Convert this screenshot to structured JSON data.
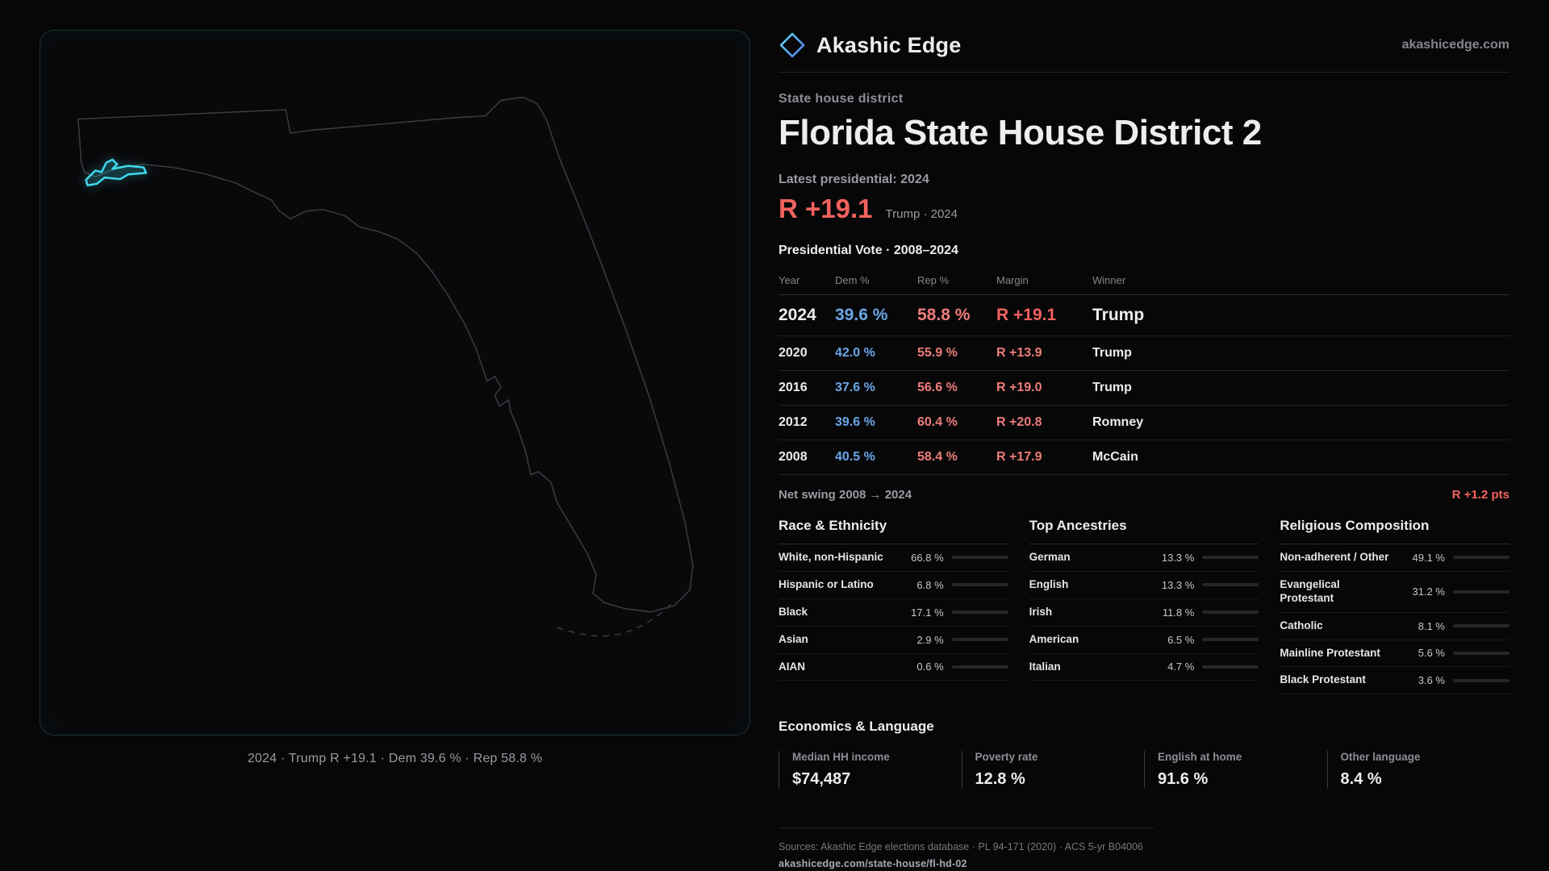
{
  "theme": {
    "dem_blue": "#6aa6e8",
    "rep_red": "#f2625e",
    "highlight_cyan": "#3fd8ec"
  },
  "brand": {
    "logo_icon": "diamond",
    "name": "Akashic Edge",
    "domain": "akashicedge.com"
  },
  "map": {
    "caption": "2024 · Trump R +19.1 · Dem 39.6 % · Rep 58.8 %"
  },
  "header": {
    "kicker": "State house district",
    "title": "Florida State House District 2",
    "latest_label": "Latest presidential: 2024",
    "margin_value": "R +19.1",
    "margin_detail": "Trump · 2024"
  },
  "vote_table": {
    "title": "Presidential Vote · 2008–2024",
    "columns": {
      "year": "Year",
      "dem": "Dem %",
      "rep": "Rep %",
      "margin": "Margin",
      "winner": "Winner"
    },
    "rows": [
      {
        "year": "2024",
        "dem": "39.6 %",
        "rep": "58.8 %",
        "margin": "R +19.1",
        "winner": "Trump"
      },
      {
        "year": "2020",
        "dem": "42.0 %",
        "rep": "55.9 %",
        "margin": "R +13.9",
        "winner": "Trump"
      },
      {
        "year": "2016",
        "dem": "37.6 %",
        "rep": "56.6 %",
        "margin": "R +19.0",
        "winner": "Trump"
      },
      {
        "year": "2012",
        "dem": "39.6 %",
        "rep": "60.4 %",
        "margin": "R +20.8",
        "winner": "Romney"
      },
      {
        "year": "2008",
        "dem": "40.5 %",
        "rep": "58.4 %",
        "margin": "R +17.9",
        "winner": "McCain"
      }
    ],
    "net_swing_label": "Net swing 2008 → 2024",
    "net_swing_value": "R +1.2 pts"
  },
  "race": {
    "title": "Race & Ethnicity",
    "items": [
      {
        "label": "White, non-Hispanic",
        "display": "66.8 %",
        "value": 66.8,
        "color": "#a5a9bd"
      },
      {
        "label": "Hispanic or Latino",
        "display": "6.8 %",
        "value": 6.8,
        "color": "#e8b33c"
      },
      {
        "label": "Black",
        "display": "17.1 %",
        "value": 17.1,
        "color": "#9f7ef0"
      },
      {
        "label": "Asian",
        "display": "2.9 %",
        "value": 2.9,
        "color": "#3ecf8e"
      },
      {
        "label": "AIAN",
        "display": "0.6 %",
        "value": 0.6,
        "color": "#8a8f9c"
      }
    ]
  },
  "ancestries": {
    "title": "Top Ancestries",
    "items": [
      {
        "label": "German",
        "display": "13.3 %",
        "value": 13.3,
        "color": "#9aa0b0"
      },
      {
        "label": "English",
        "display": "13.3 %",
        "value": 13.3,
        "color": "#9aa0b0"
      },
      {
        "label": "Irish",
        "display": "11.8 %",
        "value": 11.8,
        "color": "#9aa0b0"
      },
      {
        "label": "American",
        "display": "6.5 %",
        "value": 6.5,
        "color": "#9aa0b0"
      },
      {
        "label": "Italian",
        "display": "4.7 %",
        "value": 4.7,
        "color": "#9aa0b0"
      }
    ]
  },
  "religion": {
    "title": "Religious Composition",
    "items": [
      {
        "label": "Non-adherent / Other",
        "display": "49.1 %",
        "value": 49.1,
        "color": "#a0a5b0"
      },
      {
        "label": "Evangelical Protestant",
        "display": "31.2 %",
        "value": 31.2,
        "color": "#f07f82"
      },
      {
        "label": "Catholic",
        "display": "8.1 %",
        "value": 8.1,
        "color": "#e8b33c"
      },
      {
        "label": "Mainline Protestant",
        "display": "5.6 %",
        "value": 5.6,
        "color": "#6a9ff0"
      },
      {
        "label": "Black Protestant",
        "display": "3.6 %",
        "value": 3.6,
        "color": "#9f7ef0"
      }
    ]
  },
  "economics": {
    "title": "Economics & Language",
    "stats": [
      {
        "label": "Median HH income",
        "value": "$74,487"
      },
      {
        "label": "Poverty rate",
        "value": "12.8 %"
      },
      {
        "label": "English at home",
        "value": "91.6 %"
      },
      {
        "label": "Other language",
        "value": "8.4 %"
      }
    ]
  },
  "footer": {
    "sources": "Sources: Akashic Edge elections database · PL 94-171 (2020) · ACS 5-yr B04006",
    "url": "akashicedge.com/state-house/fl-hd-02"
  }
}
